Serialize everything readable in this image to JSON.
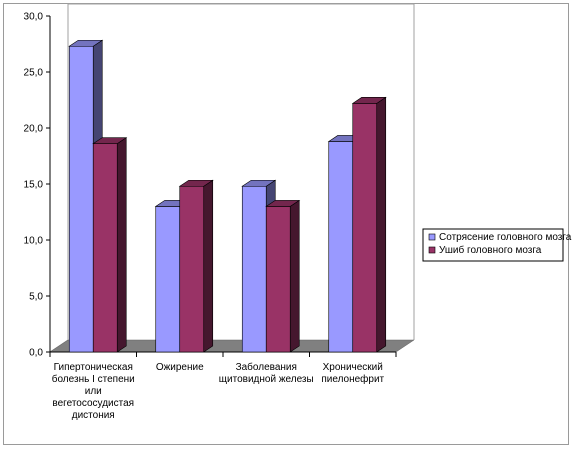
{
  "chart_data": {
    "type": "bar",
    "style": "3d-clustered-column",
    "categories": [
      [
        "Гипертоническая",
        "болезнь I степени",
        "или",
        "вегетососудистая",
        "дистония"
      ],
      [
        "Ожирение"
      ],
      [
        "Заболевания",
        "щитовидной железы"
      ],
      [
        "Хронический",
        "пиелонефрит"
      ]
    ],
    "series": [
      {
        "name": "Сотрясение головного мозга",
        "values": [
          27.3,
          13.0,
          14.8,
          18.8
        ],
        "color": "#9999ff"
      },
      {
        "name": "Ушиб головного мозга",
        "values": [
          18.6,
          14.8,
          13.0,
          22.2
        ],
        "color": "#993366"
      }
    ],
    "yticks": [
      "0,0",
      "5,0",
      "10,0",
      "15,0",
      "20,0",
      "25,0",
      "30,0"
    ],
    "ylim": [
      0,
      30
    ],
    "grid": false,
    "legend_position": "right",
    "floor_color": "#808080",
    "wall_border_color": "#a0a0a0"
  }
}
